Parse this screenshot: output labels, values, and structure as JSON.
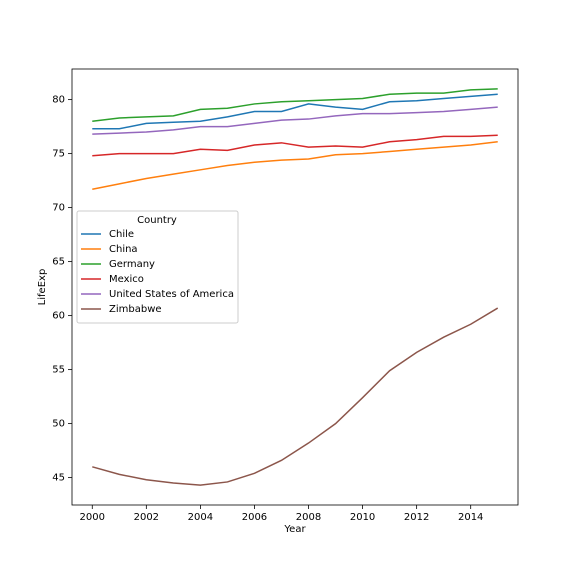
{
  "chart_data": {
    "type": "line",
    "x_label": "Year",
    "y_label": "LifeExp",
    "x": [
      2000,
      2001,
      2002,
      2003,
      2004,
      2005,
      2006,
      2007,
      2008,
      2009,
      2010,
      2011,
      2012,
      2013,
      2014,
      2015
    ],
    "xlim": [
      1999.25,
      2015.75
    ],
    "xticks": [
      2000,
      2002,
      2004,
      2006,
      2008,
      2010,
      2012,
      2014
    ],
    "ylim": [
      42.465,
      82.835
    ],
    "yticks": [
      45,
      50,
      55,
      60,
      65,
      70,
      75,
      80
    ],
    "legend_title": "Country",
    "legend_position": "center-left",
    "series": [
      {
        "name": "Chile",
        "color": "#1f77b4",
        "values": [
          77.3,
          77.3,
          77.8,
          77.9,
          78.0,
          78.4,
          78.9,
          78.9,
          79.6,
          79.3,
          79.1,
          79.8,
          79.9,
          80.1,
          80.3,
          80.5
        ]
      },
      {
        "name": "China",
        "color": "#ff7f0e",
        "values": [
          71.7,
          72.2,
          72.7,
          73.1,
          73.5,
          73.9,
          74.2,
          74.4,
          74.5,
          74.9,
          75.0,
          75.2,
          75.4,
          75.6,
          75.8,
          76.1
        ]
      },
      {
        "name": "Germany",
        "color": "#2ca02c",
        "values": [
          78.0,
          78.3,
          78.4,
          78.5,
          79.1,
          79.2,
          79.6,
          79.8,
          79.9,
          80.0,
          80.1,
          80.5,
          80.6,
          80.6,
          80.9,
          81.0
        ]
      },
      {
        "name": "Mexico",
        "color": "#d62728",
        "values": [
          74.8,
          75.0,
          75.0,
          75.0,
          75.4,
          75.3,
          75.8,
          76.0,
          75.6,
          75.7,
          75.6,
          76.1,
          76.3,
          76.6,
          76.6,
          76.7
        ]
      },
      {
        "name": "United States of America",
        "color": "#9467bd",
        "values": [
          76.8,
          76.9,
          77.0,
          77.2,
          77.5,
          77.5,
          77.8,
          78.1,
          78.2,
          78.5,
          78.7,
          78.7,
          78.8,
          78.9,
          79.1,
          79.3
        ]
      },
      {
        "name": "Zimbabwe",
        "color": "#8c564b",
        "values": [
          46.0,
          45.3,
          44.8,
          44.5,
          44.3,
          44.6,
          45.4,
          46.6,
          48.2,
          50.0,
          52.4,
          54.9,
          56.6,
          58.0,
          59.2,
          60.7
        ]
      }
    ]
  }
}
